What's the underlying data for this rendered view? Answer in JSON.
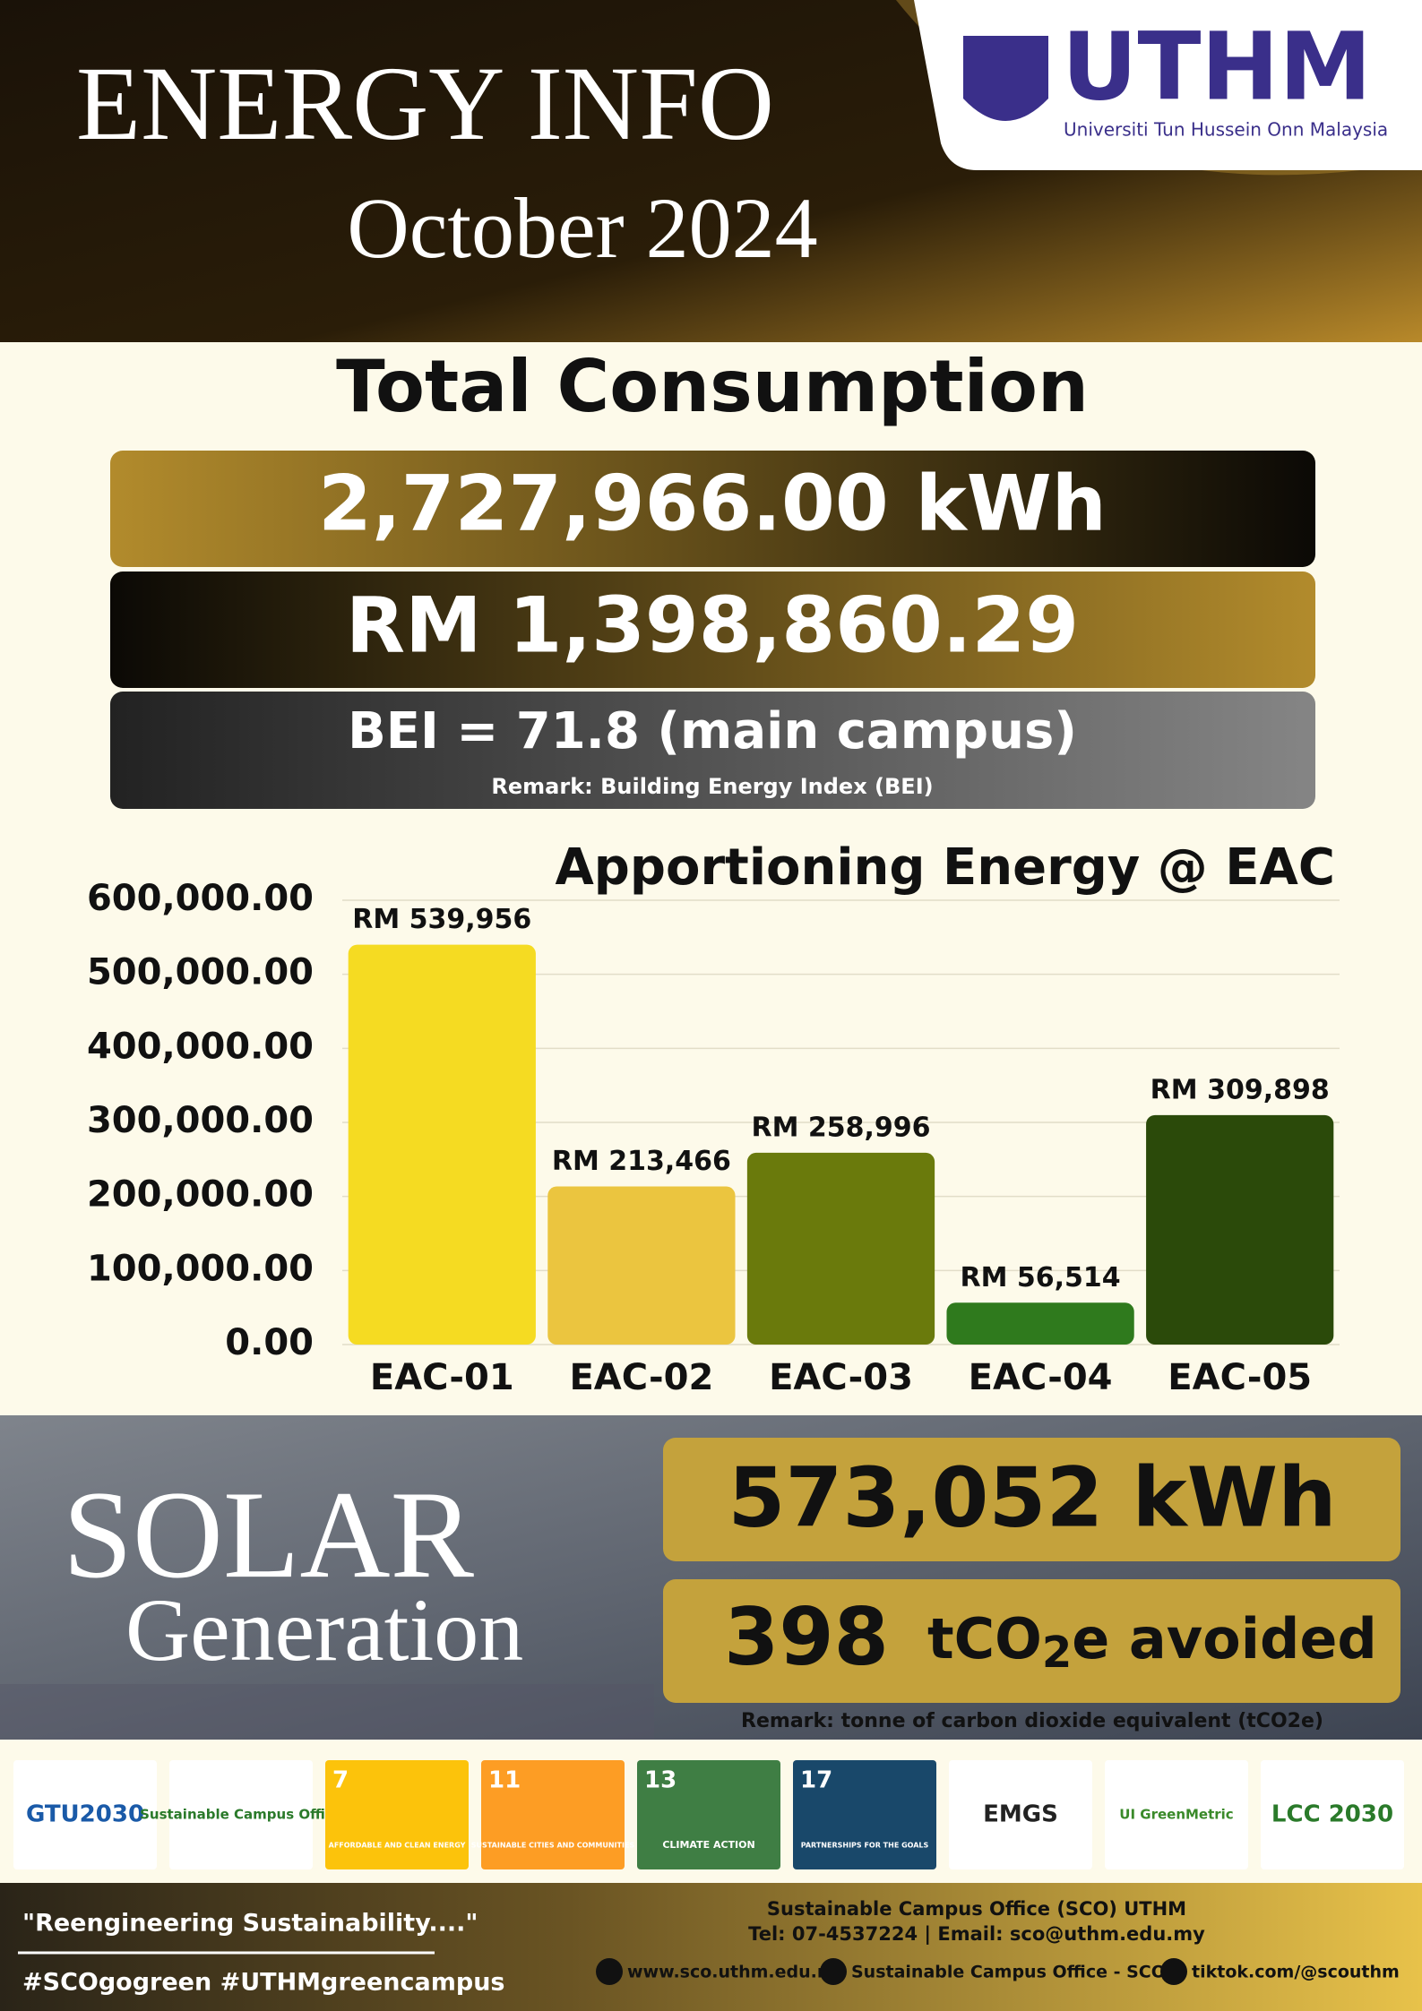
{
  "header": {
    "title": "ENERGY INFO",
    "period": "October 2024",
    "logo": "UTHM",
    "university": "Universiti Tun Hussein Onn Malaysia"
  },
  "summary": {
    "heading": "Total Consumption",
    "energy": "2,727,966.00 kWh",
    "cost": "RM 1,398,860.29",
    "bei": "BEI = 71.8 (main campus)",
    "bei_remark": "Remark: Building Energy Index (BEI)"
  },
  "chart_data": {
    "type": "bar",
    "title": "Apportioning Energy @ EAC",
    "categories": [
      "EAC-01",
      "EAC-02",
      "EAC-03",
      "EAC-04",
      "EAC-05"
    ],
    "values": [
      539956,
      213466,
      258996,
      56514,
      309898
    ],
    "value_labels": [
      "RM 539,956",
      "RM 213,466",
      "RM 258,996",
      "RM 56,514",
      "RM 309,898"
    ],
    "colors": [
      "#f5db22",
      "#ebc53f",
      "#6a7a0c",
      "#2f7a1d",
      "#2b4a0a"
    ],
    "ylim": [
      0,
      600000
    ],
    "yticks": [
      {
        "value": 0,
        "label": "0.00"
      },
      {
        "value": 100000,
        "label": "100,000.00"
      },
      {
        "value": 200000,
        "label": "200,000.00"
      },
      {
        "value": 300000,
        "label": "300,000.00"
      },
      {
        "value": 400000,
        "label": "400,000.00"
      },
      {
        "value": 500000,
        "label": "500,000.00"
      },
      {
        "value": 600000,
        "label": "600,000.00"
      }
    ],
    "grid": true
  },
  "solar": {
    "title": "SOLAR",
    "subtitle": "Generation",
    "energy": "573,052 kWh",
    "carbon": "398",
    "carbon_unit": [
      "tCO",
      "2",
      "e avoided"
    ],
    "remark": "Remark: tonne of carbon dioxide equivalent (tCO2e)"
  },
  "partners": [
    {
      "label": "GTU2030"
    },
    {
      "label": "Sustainable Campus Office"
    },
    {
      "number": "7",
      "label": "AFFORDABLE AND CLEAN ENERGY"
    },
    {
      "number": "11",
      "label": "SUSTAINABLE CITIES AND COMMUNITIES"
    },
    {
      "number": "13",
      "label": "CLIMATE ACTION"
    },
    {
      "number": "17",
      "label": "PARTNERSHIPS FOR THE GOALS"
    },
    {
      "label": "EMGS"
    },
    {
      "label": "UI GreenMetric"
    },
    {
      "label": "LCC 2030"
    }
  ],
  "footer": {
    "quote": "\"Reengineering Sustainability....\"",
    "hashtags": "#SCOgogreen #UTHMgreencampus",
    "office": "Sustainable Campus Office (SCO) UTHM",
    "contact": "Tel: 07-4537224 | Email: sco@uthm.edu.my",
    "links": [
      "www.sco.uthm.edu.my",
      "Sustainable Campus Office - SCO",
      "tiktok.com/@scouthm"
    ]
  }
}
